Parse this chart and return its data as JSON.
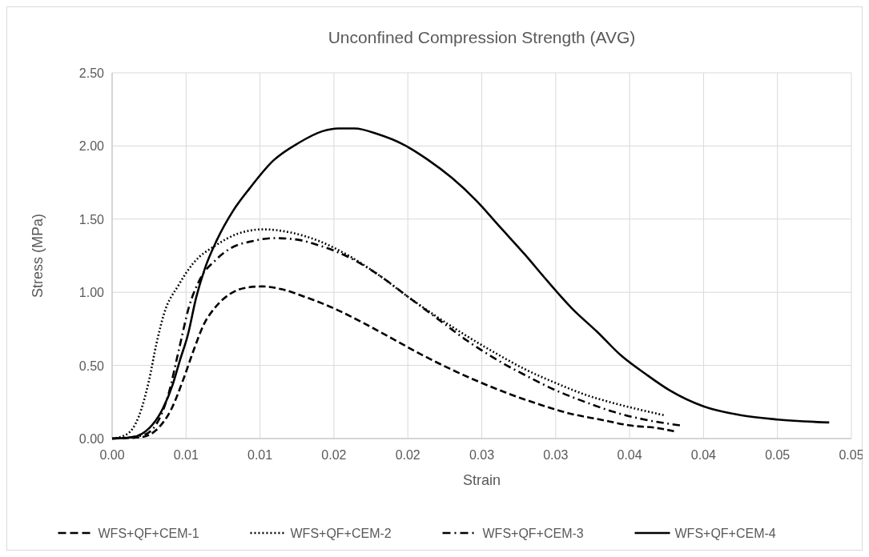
{
  "chart_data": {
    "type": "line",
    "title": "Unconfined Compression Strength (AVG)",
    "xlabel": "Strain",
    "ylabel": "Stress (MPa)",
    "xlim": [
      0,
      0.05
    ],
    "ylim": [
      0,
      2.5
    ],
    "xticks": [
      {
        "value": 0,
        "label": "0.00"
      },
      {
        "value": 0.005,
        "label": "0.01"
      },
      {
        "value": 0.01,
        "label": "0.01"
      },
      {
        "value": 0.015,
        "label": "0.02"
      },
      {
        "value": 0.02,
        "label": "0.02"
      },
      {
        "value": 0.025,
        "label": "0.03"
      },
      {
        "value": 0.03,
        "label": "0.03"
      },
      {
        "value": 0.035,
        "label": "0.04"
      },
      {
        "value": 0.04,
        "label": "0.04"
      },
      {
        "value": 0.045,
        "label": "0.05"
      },
      {
        "value": 0.05,
        "label": "0.05"
      }
    ],
    "yticks": [
      {
        "value": 0,
        "label": "0.00"
      },
      {
        "value": 0.5,
        "label": "0.50"
      },
      {
        "value": 1,
        "label": "1.00"
      },
      {
        "value": 1.5,
        "label": "1.50"
      },
      {
        "value": 2,
        "label": "2.00"
      },
      {
        "value": 2.5,
        "label": "2.50"
      }
    ],
    "grid": true,
    "legend": "bottom",
    "series": [
      {
        "name": "WFS+QF+CEM-1",
        "color": "#000000",
        "line_style": "dashed",
        "x": [
          0,
          0.002,
          0.003,
          0.004,
          0.0048,
          0.0055,
          0.0062,
          0.007,
          0.008,
          0.009,
          0.0101,
          0.0115,
          0.013,
          0.015,
          0.017,
          0.019,
          0.021,
          0.023,
          0.025,
          0.027,
          0.029,
          0.031,
          0.033,
          0.035,
          0.037,
          0.038
        ],
        "values": [
          0,
          0.01,
          0.06,
          0.2,
          0.4,
          0.6,
          0.78,
          0.9,
          0.99,
          1.03,
          1.04,
          1.02,
          0.97,
          0.89,
          0.79,
          0.68,
          0.57,
          0.47,
          0.38,
          0.3,
          0.23,
          0.17,
          0.13,
          0.09,
          0.07,
          0.05
        ]
      },
      {
        "name": "WFS+QF+CEM-2",
        "color": "#000000",
        "line_style": "dotted",
        "x": [
          0,
          0.001,
          0.0018,
          0.0025,
          0.003,
          0.0035,
          0.0045,
          0.0055,
          0.007,
          0.0085,
          0.0102,
          0.012,
          0.014,
          0.016,
          0.018,
          0.02,
          0.022,
          0.024,
          0.026,
          0.028,
          0.03,
          0.032,
          0.034,
          0.036,
          0.0373
        ],
        "values": [
          0,
          0.03,
          0.15,
          0.4,
          0.65,
          0.85,
          1.05,
          1.2,
          1.32,
          1.4,
          1.43,
          1.41,
          1.35,
          1.25,
          1.12,
          0.97,
          0.83,
          0.7,
          0.58,
          0.47,
          0.38,
          0.3,
          0.24,
          0.19,
          0.16
        ]
      },
      {
        "name": "WFS+QF+CEM-3",
        "color": "#000000",
        "line_style": "dashdot",
        "x": [
          0,
          0.002,
          0.003,
          0.0038,
          0.0045,
          0.0052,
          0.006,
          0.007,
          0.008,
          0.0095,
          0.011,
          0.0125,
          0.014,
          0.016,
          0.018,
          0.02,
          0.022,
          0.024,
          0.026,
          0.028,
          0.03,
          0.032,
          0.034,
          0.036,
          0.0384
        ],
        "values": [
          0,
          0.02,
          0.1,
          0.3,
          0.6,
          0.9,
          1.1,
          1.22,
          1.3,
          1.35,
          1.37,
          1.36,
          1.32,
          1.24,
          1.12,
          0.97,
          0.82,
          0.67,
          0.54,
          0.43,
          0.33,
          0.25,
          0.18,
          0.13,
          0.09
        ]
      },
      {
        "name": "WFS+QF+CEM-4",
        "color": "#000000",
        "line_style": "solid",
        "x": [
          0,
          0.0014,
          0.0025,
          0.0033,
          0.0041,
          0.0046,
          0.0051,
          0.0057,
          0.0063,
          0.0071,
          0.0082,
          0.0093,
          0.0109,
          0.0126,
          0.0142,
          0.0153,
          0.0164,
          0.018,
          0.0197,
          0.0213,
          0.023,
          0.0246,
          0.0262,
          0.0279,
          0.0295,
          0.0311,
          0.0328,
          0.0344,
          0.0361,
          0.0377,
          0.04,
          0.0425,
          0.045,
          0.0485
        ],
        "values": [
          0,
          0.01,
          0.07,
          0.18,
          0.37,
          0.54,
          0.7,
          0.97,
          1.17,
          1.36,
          1.56,
          1.71,
          1.9,
          2.02,
          2.1,
          2.12,
          2.12,
          2.08,
          2.01,
          1.91,
          1.78,
          1.63,
          1.45,
          1.26,
          1.07,
          0.89,
          0.73,
          0.57,
          0.44,
          0.33,
          0.22,
          0.16,
          0.13,
          0.11
        ]
      }
    ]
  }
}
